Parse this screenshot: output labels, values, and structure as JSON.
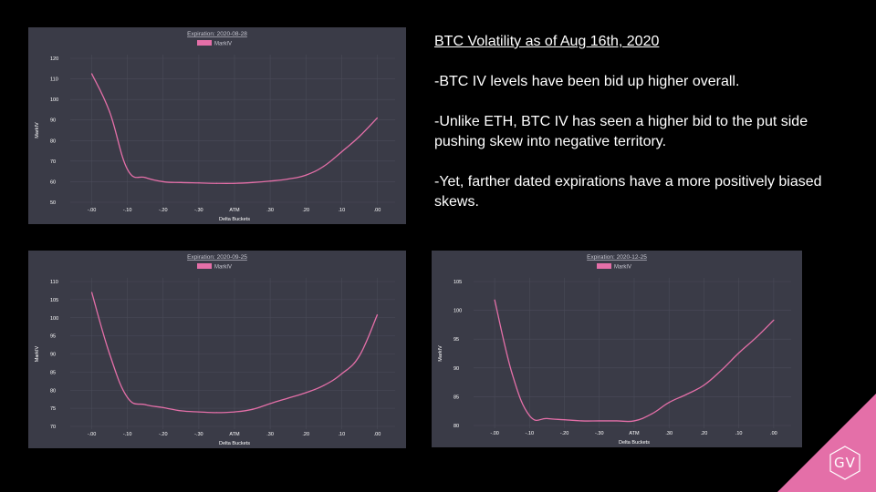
{
  "notes": {
    "heading": "BTC Volatility as of Aug 16th, 2020",
    "paragraphs": [
      "-BTC IV levels have been bid up higher overall.",
      "-Unlike ETH, BTC IV has seen a higher bid to the put side pushing skew into negative territory.",
      "-Yet, farther dated expirations have a more positively biased skews."
    ]
  },
  "logo": {
    "text": "GV",
    "color": "#e46fa8"
  },
  "colors": {
    "panel_bg": "#3a3b47",
    "series": "#e46fa8",
    "tick_text": "#ffffff",
    "grid": "#4a4b58"
  },
  "chart_data": [
    {
      "type": "line",
      "title": "Expiration: 2020-08-28",
      "xlabel": "Delta Buckets",
      "ylabel": "MarkIV",
      "categories": [
        "-.00",
        "-.10",
        "-.20",
        "-.30",
        "ATM",
        ".30",
        ".20",
        ".10",
        ".00"
      ],
      "ylim": [
        50,
        120
      ],
      "yticks": [
        50,
        60,
        70,
        80,
        90,
        100,
        110,
        120
      ],
      "grid": true,
      "legend": "top-center",
      "series": [
        {
          "name": "MarkIV",
          "x": [
            0,
            0.5,
            1,
            1.5,
            2,
            2.5,
            3,
            3.5,
            4,
            4.5,
            5,
            5.5,
            6,
            6.5,
            7,
            7.5,
            8
          ],
          "values": [
            112.5,
            94,
            66,
            62,
            60,
            59.6,
            59.4,
            59.2,
            59.2,
            59.6,
            60.3,
            61.3,
            63.2,
            67.5,
            74.5,
            82,
            91
          ]
        }
      ]
    },
    {
      "type": "line",
      "title": "Expiration: 2020-09-25",
      "xlabel": "Delta Buckets",
      "ylabel": "MarkIV",
      "categories": [
        "-.00",
        "-.10",
        "-.20",
        "-.30",
        "ATM",
        ".30",
        ".20",
        ".10",
        ".00"
      ],
      "ylim": [
        70,
        110
      ],
      "yticks": [
        70,
        75,
        80,
        85,
        90,
        95,
        100,
        105,
        110
      ],
      "grid": true,
      "legend": "top-center",
      "series": [
        {
          "name": "MarkIV",
          "x": [
            0,
            0.5,
            1,
            1.5,
            2,
            2.5,
            3,
            3.5,
            4,
            4.5,
            5,
            5.5,
            6,
            6.5,
            7,
            7.5,
            8
          ],
          "values": [
            107,
            90,
            78,
            76,
            75.2,
            74.3,
            74,
            73.8,
            74,
            74.7,
            76.3,
            77.8,
            79.3,
            81.3,
            84.5,
            89.5,
            100.8
          ]
        }
      ]
    },
    {
      "type": "line",
      "title": "Expiration: 2020-12-25",
      "xlabel": "Delta Buckets",
      "ylabel": "MarkIV",
      "categories": [
        "-.00",
        "-.10",
        "-.20",
        "-.30",
        "ATM",
        ".30",
        ".20",
        ".10",
        ".00"
      ],
      "ylim": [
        80,
        105
      ],
      "yticks": [
        80,
        85,
        90,
        95,
        100,
        105
      ],
      "grid": true,
      "legend": "top-center",
      "series": [
        {
          "name": "MarkIV",
          "x": [
            0,
            0.5,
            1,
            1.5,
            2,
            2.5,
            3,
            3.5,
            4,
            4.5,
            5,
            5.5,
            6,
            6.5,
            7,
            7.5,
            8
          ],
          "values": [
            101.8,
            89,
            81.7,
            81.2,
            81,
            80.8,
            80.8,
            80.8,
            80.8,
            82,
            84,
            85.4,
            87,
            89.6,
            92.6,
            95.3,
            98.3
          ]
        }
      ]
    }
  ]
}
